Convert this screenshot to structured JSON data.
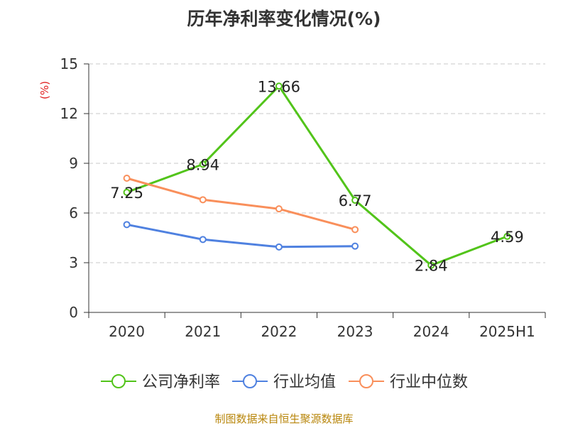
{
  "chart_data": {
    "type": "line",
    "title": "历年净利率变化情况(%)",
    "ylabel": "(%)",
    "xlabel": "",
    "categories": [
      "2020",
      "2021",
      "2022",
      "2023",
      "2024",
      "2025H1"
    ],
    "ylim": [
      0,
      15
    ],
    "yticks": [
      0,
      3,
      6,
      9,
      12,
      15
    ],
    "grid": true,
    "legend_position": "bottom",
    "series": [
      {
        "name": "公司净利率",
        "color": "#52c41a",
        "values": [
          7.25,
          8.94,
          13.66,
          6.77,
          2.84,
          4.59
        ],
        "show_labels": true
      },
      {
        "name": "行业均值",
        "color": "#4f81e0",
        "values": [
          5.3,
          4.4,
          3.95,
          4.0,
          null,
          null
        ],
        "show_labels": false
      },
      {
        "name": "行业中位数",
        "color": "#f98f5b",
        "values": [
          8.1,
          6.8,
          6.25,
          5.0,
          null,
          null
        ],
        "show_labels": false
      }
    ]
  },
  "source": "制图数据来自恒生聚源数据库"
}
